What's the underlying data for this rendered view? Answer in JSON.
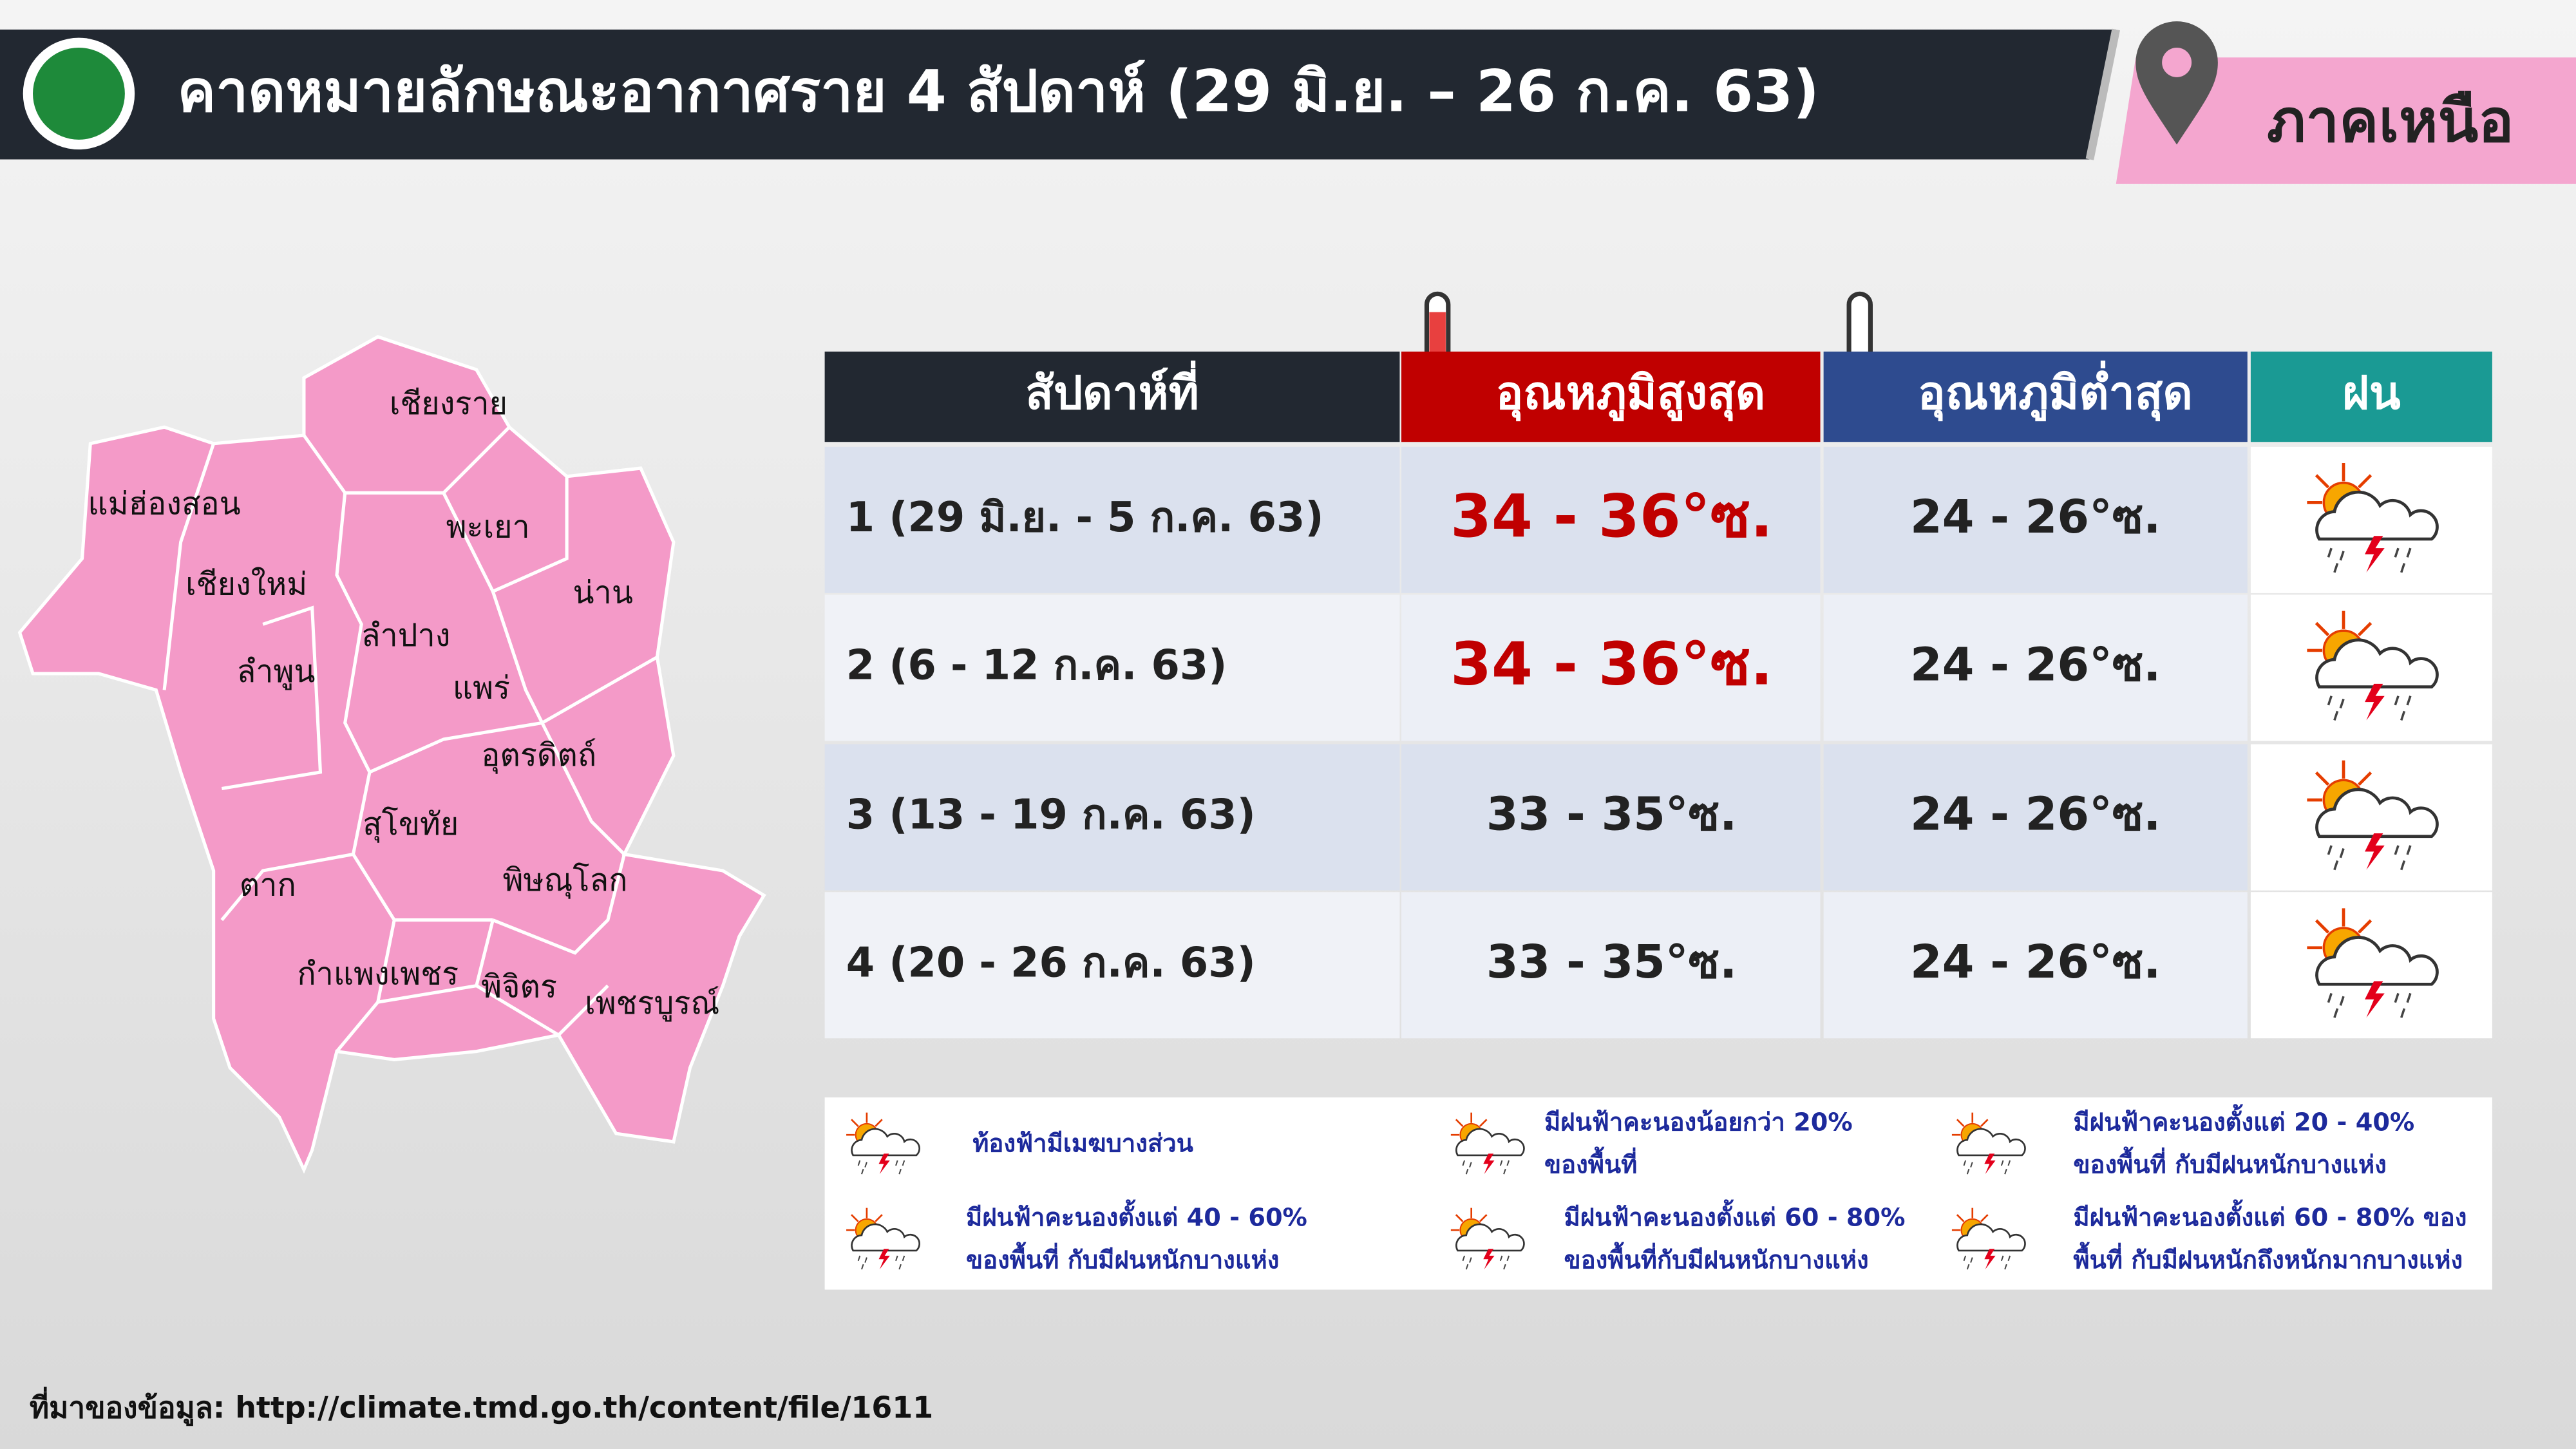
{
  "header": {
    "title": "คาดหมายลักษณะอากาศราย 4 สัปดาห์ (29 มิ.ย. – 26 ก.ค. 63)",
    "region": "ภาคเหนือ"
  },
  "map": {
    "provinces": [
      "เชียงราย",
      "แม่ฮ่องสอน",
      "พะเยา",
      "น่าน",
      "เชียงใหม่",
      "ลำปาง",
      "ลำพูน",
      "แพร่",
      "อุตรดิตถ์",
      "สุโขทัย",
      "ตาก",
      "พิษณุโลก",
      "กำแพงเพชร",
      "พิจิตร",
      "เพชรบูรณ์"
    ]
  },
  "table": {
    "headers": [
      "สัปดาห์ที่",
      "อุณหภูมิสูงสุด",
      "อุณหภูมิต่ำสุด",
      "ฝน"
    ],
    "rows": [
      {
        "week": "1 (29 มิ.ย. - 5 ก.ค. 63)",
        "max": "34 - 36°ซ.",
        "min": "24 - 26°ซ."
      },
      {
        "week": "2 (6 - 12 ก.ค. 63)",
        "max": "34 - 36°ซ.",
        "min": "24 - 26°ซ."
      },
      {
        "week": "3 (13 - 19 ก.ค. 63)",
        "max": "33 - 35°ซ.",
        "min": "24 - 26°ซ."
      },
      {
        "week": "4 (20 - 26 ก.ค. 63)",
        "max": "33 - 35°ซ.",
        "min": "24 - 26°ซ."
      }
    ]
  },
  "legend": {
    "items": [
      {
        "lines": [
          "ท้องฟ้ามีเมฆบางส่วน"
        ]
      },
      {
        "lines": [
          "มีฝนฟ้าคะนองน้อยกว่า 20%",
          "ของพื้นที่"
        ]
      },
      {
        "lines": [
          "มีฝนฟ้าคะนองตั้งแต่ 20 - 40%",
          "ของพื้นที่ กับมีฝนหนักบางแห่ง"
        ]
      },
      {
        "lines": [
          "มีฝนฟ้าคะนองตั้งแต่ 40 - 60%",
          "ของพื้นที่ กับมีฝนหนักบางแห่ง"
        ]
      },
      {
        "lines": [
          "มีฝนฟ้าคะนองตั้งแต่ 60 - 80%",
          "ของพื้นที่กับมีฝนหนักบางแห่ง"
        ]
      },
      {
        "lines": [
          "มีฝนฟ้าคะนองตั้งแต่ 60 - 80% ของ",
          "พื้นที่ กับมีฝนหนักถึงหนักมากบางแห่ง"
        ]
      }
    ]
  },
  "source": "ที่มาของข้อมูล: http://climate.tmd.go.th/content/file/1611"
}
